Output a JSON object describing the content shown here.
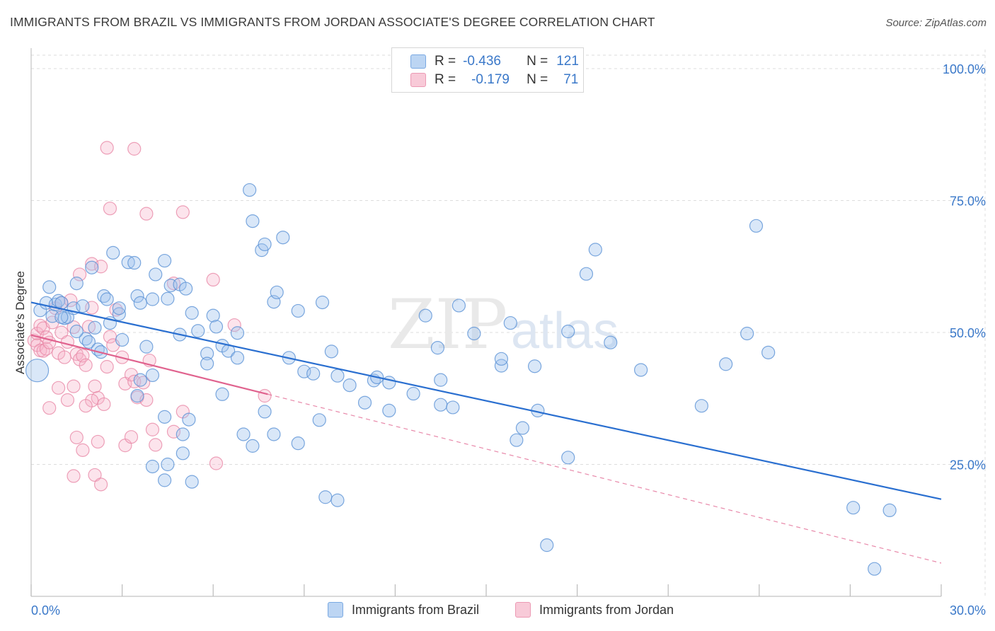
{
  "title": "IMMIGRANTS FROM BRAZIL VS IMMIGRANTS FROM JORDAN ASSOCIATE'S DEGREE CORRELATION CHART",
  "source": "Source: ZipAtlas.com",
  "watermark": {
    "zip": "ZIP",
    "atlas": "atlas"
  },
  "legend_top": [
    {
      "r_label": "R =",
      "r_value": "-0.436",
      "n_label": "N =",
      "n_value": "121"
    },
    {
      "r_label": "R =",
      "r_value": "-0.179",
      "n_label": "N =",
      "n_value": "71"
    }
  ],
  "legend_bottom": [
    {
      "label": "Immigrants from Brazil"
    },
    {
      "label": "Immigrants from Jordan"
    }
  ],
  "colors": {
    "brazil_fill": "#9fc3ee",
    "brazil_stroke": "#5b92d6",
    "brazil_line": "#2a6fd0",
    "jordan_fill": "#f5b3c8",
    "jordan_stroke": "#e98aa8",
    "jordan_line": "#e0628e",
    "axis_tick_label": "#3a78c9",
    "grid": "#dddddd"
  },
  "chart_data": {
    "type": "scatter",
    "title": "IMMIGRANTS FROM BRAZIL VS IMMIGRANTS FROM JORDAN ASSOCIATE'S DEGREE CORRELATION CHART",
    "xlabel": "",
    "ylabel": "Associate's Degree",
    "xlim": [
      0,
      30
    ],
    "ylim": [
      0,
      105
    ],
    "x_tick_labels": [
      "0.0%",
      "30.0%"
    ],
    "y_ticks": [
      25,
      50,
      75,
      100
    ],
    "y_tick_labels": [
      "25.0%",
      "50.0%",
      "75.0%",
      "100.0%"
    ],
    "grid": true,
    "legend": "top-center",
    "series": [
      {
        "name": "Immigrants from Brazil",
        "r": -0.436,
        "n": 121,
        "trend": {
          "x": [
            0,
            30
          ],
          "y": [
            55.7,
            18.4
          ]
        },
        "points": [
          [
            0.3,
            54.2
          ],
          [
            0.5,
            55.6
          ],
          [
            0.6,
            58.6
          ],
          [
            0.7,
            53.1
          ],
          [
            0.8,
            55.3
          ],
          [
            0.9,
            56.0
          ],
          [
            1.0,
            55.6
          ],
          [
            1.1,
            52.7
          ],
          [
            1.2,
            52.9
          ],
          [
            1.4,
            54.6
          ],
          [
            1.5,
            59.3
          ],
          [
            1.7,
            55.0
          ],
          [
            1.8,
            48.8
          ],
          [
            1.9,
            48.2
          ],
          [
            2.0,
            62.3
          ],
          [
            2.1,
            50.9
          ],
          [
            2.2,
            46.8
          ],
          [
            2.3,
            46.3
          ],
          [
            2.4,
            56.9
          ],
          [
            2.5,
            56.3
          ],
          [
            2.6,
            51.8
          ],
          [
            2.7,
            65.1
          ],
          [
            2.9,
            53.5
          ],
          [
            2.9,
            54.6
          ],
          [
            3.2,
            63.3
          ],
          [
            3.4,
            63.2
          ],
          [
            3.5,
            56.9
          ],
          [
            3.6,
            55.6
          ],
          [
            3.8,
            47.3
          ],
          [
            4.0,
            56.3
          ],
          [
            4.1,
            61.0
          ],
          [
            4.4,
            63.6
          ],
          [
            4.5,
            56.4
          ],
          [
            4.6,
            58.9
          ],
          [
            4.9,
            59.1
          ],
          [
            4.9,
            49.6
          ],
          [
            5.1,
            58.3
          ],
          [
            5.3,
            53.7
          ],
          [
            5.5,
            50.3
          ],
          [
            5.8,
            46.0
          ],
          [
            5.8,
            44.1
          ],
          [
            6.0,
            53.2
          ],
          [
            6.1,
            51.1
          ],
          [
            6.3,
            47.5
          ],
          [
            6.5,
            46.5
          ],
          [
            6.8,
            49.9
          ],
          [
            7.0,
            30.7
          ],
          [
            7.2,
            77.0
          ],
          [
            7.3,
            71.1
          ],
          [
            7.6,
            65.6
          ],
          [
            7.7,
            66.7
          ],
          [
            8.0,
            55.8
          ],
          [
            8.1,
            57.6
          ],
          [
            8.3,
            68.0
          ],
          [
            8.5,
            45.2
          ],
          [
            8.8,
            54.1
          ],
          [
            9.0,
            42.6
          ],
          [
            9.3,
            42.2
          ],
          [
            9.6,
            55.7
          ],
          [
            9.9,
            46.4
          ],
          [
            10.1,
            41.8
          ],
          [
            11.3,
            40.9
          ],
          [
            11.4,
            41.5
          ],
          [
            11.8,
            35.2
          ],
          [
            13.0,
            53.2
          ],
          [
            13.4,
            47.1
          ],
          [
            14.1,
            55.1
          ],
          [
            14.6,
            49.8
          ],
          [
            15.5,
            43.7
          ],
          [
            15.8,
            51.8
          ],
          [
            16.2,
            31.9
          ],
          [
            16.6,
            43.6
          ],
          [
            16.7,
            35.2
          ],
          [
            15.5,
            45.0
          ],
          [
            17.7,
            50.2
          ],
          [
            18.3,
            61.1
          ],
          [
            18.6,
            65.7
          ],
          [
            19.1,
            48.1
          ],
          [
            20.1,
            42.9
          ],
          [
            22.1,
            36.1
          ],
          [
            22.9,
            44.0
          ],
          [
            23.6,
            49.8
          ],
          [
            23.9,
            70.2
          ],
          [
            24.3,
            46.2
          ],
          [
            27.1,
            16.8
          ],
          [
            28.3,
            16.3
          ],
          [
            6.3,
            38.3
          ],
          [
            4.0,
            41.9
          ],
          [
            3.6,
            41.0
          ],
          [
            5.0,
            30.7
          ],
          [
            5.2,
            33.5
          ],
          [
            7.7,
            35.0
          ],
          [
            8.0,
            30.7
          ],
          [
            8.8,
            29.0
          ],
          [
            9.5,
            33.4
          ],
          [
            11.0,
            36.7
          ],
          [
            12.6,
            38.4
          ],
          [
            13.5,
            36.3
          ],
          [
            13.9,
            35.8
          ],
          [
            16.0,
            29.6
          ],
          [
            17.7,
            26.3
          ],
          [
            3.5,
            38.0
          ],
          [
            4.4,
            34.0
          ],
          [
            5.0,
            27.1
          ],
          [
            4.0,
            24.6
          ],
          [
            4.5,
            25.0
          ],
          [
            4.4,
            22.0
          ],
          [
            5.3,
            21.7
          ],
          [
            7.3,
            28.5
          ],
          [
            9.7,
            18.8
          ],
          [
            10.1,
            18.2
          ],
          [
            17.0,
            9.7
          ],
          [
            11.8,
            40.5
          ],
          [
            27.8,
            5.2
          ],
          [
            6.8,
            45.2
          ],
          [
            10.5,
            40.0
          ],
          [
            13.5,
            41.0
          ],
          [
            3.0,
            48.6
          ],
          [
            1.5,
            50.2
          ],
          [
            1.0,
            52.9
          ],
          [
            0.2,
            42.8
          ]
        ]
      },
      {
        "name": "Immigrants from Jordan",
        "r": -0.179,
        "n": 71,
        "trend": {
          "x": [
            0,
            7.8
          ],
          "y": [
            49.5,
            38.3
          ]
        },
        "trend_extrapolated": {
          "x": [
            7.8,
            30
          ],
          "y": [
            38.3,
            6.3
          ]
        },
        "points": [
          [
            0.1,
            48.5
          ],
          [
            0.2,
            49.8
          ],
          [
            0.2,
            47.6
          ],
          [
            0.3,
            46.6
          ],
          [
            0.3,
            51.3
          ],
          [
            0.4,
            50.8
          ],
          [
            0.4,
            46.5
          ],
          [
            0.5,
            46.9
          ],
          [
            0.5,
            49.1
          ],
          [
            0.6,
            48.1
          ],
          [
            0.7,
            51.9
          ],
          [
            0.8,
            54.6
          ],
          [
            0.9,
            46.1
          ],
          [
            1.0,
            55.6
          ],
          [
            1.0,
            50.0
          ],
          [
            1.1,
            45.3
          ],
          [
            1.2,
            48.2
          ],
          [
            1.3,
            56.1
          ],
          [
            1.4,
            51.0
          ],
          [
            1.5,
            45.9
          ],
          [
            1.6,
            44.9
          ],
          [
            1.6,
            61.0
          ],
          [
            1.7,
            45.6
          ],
          [
            1.8,
            43.8
          ],
          [
            1.9,
            51.1
          ],
          [
            2.0,
            54.7
          ],
          [
            2.0,
            63.0
          ],
          [
            2.1,
            39.8
          ],
          [
            2.2,
            37.6
          ],
          [
            2.3,
            62.5
          ],
          [
            2.5,
            43.5
          ],
          [
            2.6,
            49.2
          ],
          [
            2.7,
            47.6
          ],
          [
            2.8,
            54.3
          ],
          [
            3.0,
            45.3
          ],
          [
            3.1,
            40.3
          ],
          [
            3.3,
            42.0
          ],
          [
            3.4,
            40.7
          ],
          [
            3.5,
            37.7
          ],
          [
            3.7,
            40.5
          ],
          [
            3.8,
            37.2
          ],
          [
            3.9,
            44.7
          ],
          [
            4.0,
            31.6
          ],
          [
            4.1,
            28.7
          ],
          [
            2.0,
            37.1
          ],
          [
            1.2,
            37.2
          ],
          [
            1.4,
            39.8
          ],
          [
            1.8,
            36.1
          ],
          [
            2.4,
            36.4
          ],
          [
            2.2,
            29.3
          ],
          [
            1.7,
            27.7
          ],
          [
            3.1,
            28.6
          ],
          [
            4.7,
            31.2
          ],
          [
            5.0,
            35.0
          ],
          [
            6.1,
            25.2
          ],
          [
            2.1,
            23.0
          ],
          [
            2.3,
            21.2
          ],
          [
            1.4,
            22.8
          ],
          [
            3.4,
            84.8
          ],
          [
            2.5,
            85.0
          ],
          [
            3.8,
            72.5
          ],
          [
            2.6,
            73.5
          ],
          [
            5.0,
            72.8
          ],
          [
            4.7,
            59.3
          ],
          [
            6.0,
            60.0
          ],
          [
            7.7,
            38.0
          ],
          [
            6.7,
            51.4
          ],
          [
            0.6,
            35.7
          ],
          [
            0.9,
            39.5
          ],
          [
            1.5,
            30.1
          ],
          [
            3.3,
            30.2
          ]
        ]
      }
    ]
  }
}
